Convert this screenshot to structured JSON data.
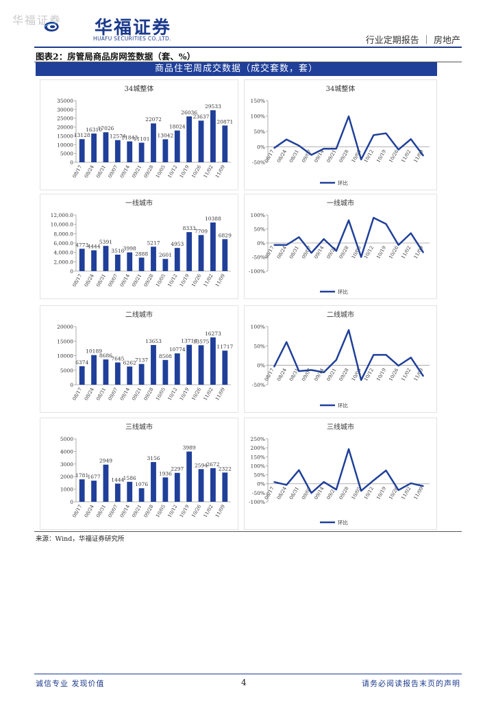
{
  "watermark": "华福证券",
  "brand": {
    "name_cn": "华福证券",
    "name_en": "HUAFU SECURITIES CO.,LTD.",
    "color": "#1b3a8c"
  },
  "header": {
    "report_type": "行业定期报告 ｜ 房地产"
  },
  "figure": {
    "title": "图表2：房管局商品房网签数据（套、%）",
    "banner": "商品住宅周成交数据（成交套数，套）"
  },
  "colors": {
    "bar": "#1f3f99",
    "line": "#1f3f99",
    "banner": "#1f3f99"
  },
  "chart_data": [
    {
      "type": "bar",
      "title": "34城整体",
      "categories": [
        "08/17",
        "08/24",
        "08/31",
        "09/07",
        "09/14",
        "09/21",
        "09/28",
        "10/05",
        "10/12",
        "10/19",
        "10/26",
        "11/02",
        "11/09"
      ],
      "values": [
        13128,
        16310,
        17026,
        12574,
        11843,
        11101,
        22072,
        13042,
        18024,
        26036,
        23637,
        29533,
        20871
      ],
      "labels": [
        "13128",
        "16310",
        "17026",
        "12574",
        "11843",
        "11101",
        "22072",
        "13042",
        "18024",
        "26036",
        "23637",
        "29533",
        "20871"
      ],
      "ylim": [
        0,
        35000
      ],
      "yticks": [
        "0",
        "5000",
        "10000",
        "15000",
        "20000",
        "25000",
        "30000",
        "35000"
      ]
    },
    {
      "type": "line",
      "title": "34城整体",
      "legend": "环比",
      "categories": [
        "08/17",
        "08/24",
        "08/31",
        "09/07",
        "09/14",
        "09/21",
        "09/28",
        "10/05",
        "10/12",
        "10/19",
        "10/26",
        "11/02",
        "11/09"
      ],
      "values": [
        -4,
        24,
        4,
        -26,
        -6,
        -6,
        99,
        -41,
        38,
        44,
        -9,
        25,
        -29
      ],
      "ylim": [
        -50,
        150
      ],
      "yticks": [
        "-50%",
        "0%",
        "50%",
        "100%",
        "150%"
      ]
    },
    {
      "type": "bar",
      "title": "一线城市",
      "categories": [
        "08/17",
        "08/24",
        "08/31",
        "09/07",
        "09/14",
        "09/21",
        "09/28",
        "10/05",
        "10/12",
        "10/19",
        "10/26",
        "11/02",
        "11/09"
      ],
      "values": [
        4773,
        4444,
        5391,
        3516,
        3998,
        2888,
        5217,
        2601,
        4953,
        8333,
        7709,
        10388,
        6829
      ],
      "labels": [
        "4773",
        "4444",
        "5391",
        "3516",
        "3998",
        "2888",
        "5217",
        "2601",
        "4953",
        "8333",
        "7709",
        "10388",
        "6829"
      ],
      "ylim": [
        0,
        12000
      ],
      "yticks": [
        "0",
        "2,000.0",
        "4,000.0",
        "6,000.0",
        "8,000.0",
        "10,000.0",
        "12,000.0"
      ]
    },
    {
      "type": "line",
      "title": "一线城市",
      "legend": "环比",
      "categories": [
        "08/17",
        "08/24",
        "08/31",
        "09/07",
        "09/14",
        "09/21",
        "09/28",
        "10/05",
        "10/12",
        "10/19",
        "10/26",
        "11/02",
        "11/09"
      ],
      "values": [
        -7,
        -7,
        21,
        -35,
        14,
        -28,
        81,
        -50,
        90,
        68,
        -7,
        35,
        -34
      ],
      "ylim": [
        -100,
        100
      ],
      "yticks": [
        "-100%",
        "-50%",
        "0%",
        "50%",
        "100%"
      ]
    },
    {
      "type": "bar",
      "title": "二线城市",
      "categories": [
        "08/17",
        "08/24",
        "08/31",
        "09/07",
        "09/14",
        "09/21",
        "09/28",
        "10/05",
        "10/12",
        "10/19",
        "10/26",
        "11/02",
        "11/09"
      ],
      "values": [
        6374,
        10189,
        8686,
        7645,
        6262,
        7137,
        13653,
        8508,
        10774,
        13714,
        13575,
        16273,
        11717
      ],
      "labels": [
        "6374",
        "10189",
        "8686",
        "7645",
        "6262",
        "7137",
        "13653",
        "8508",
        "10774",
        "13714",
        "13575",
        "16273",
        "11717"
      ],
      "ylim": [
        0,
        20000
      ],
      "yticks": [
        "0",
        "5000",
        "10000",
        "15000",
        "20000"
      ]
    },
    {
      "type": "line",
      "title": "二线城市",
      "legend": "环比",
      "categories": [
        "08/17",
        "08/24",
        "08/31",
        "09/07",
        "09/14",
        "09/21",
        "09/28",
        "10/05",
        "10/12",
        "10/19",
        "10/26",
        "11/02",
        "11/09"
      ],
      "values": [
        -4,
        60,
        -15,
        -12,
        -18,
        14,
        91,
        -38,
        27,
        27,
        -1,
        20,
        -28
      ],
      "ylim": [
        -50,
        100
      ],
      "yticks": [
        "-50%",
        "0%",
        "50%",
        "100%"
      ]
    },
    {
      "type": "bar",
      "title": "三线城市",
      "categories": [
        "08/17",
        "08/24",
        "08/31",
        "09/07",
        "09/14",
        "09/21",
        "09/28",
        "10/05",
        "10/12",
        "10/19",
        "10/26",
        "11/02",
        "11/09"
      ],
      "values": [
        1781,
        1677,
        2949,
        1444,
        1586,
        1076,
        3156,
        1936,
        2297,
        3989,
        2594,
        2672,
        2322
      ],
      "labels": [
        "1781",
        "1677",
        "2949",
        "1444",
        "1586",
        "1076",
        "3156",
        "1936",
        "2297",
        "3989",
        "2594",
        "2672",
        "2322"
      ],
      "ylim": [
        0,
        5000
      ],
      "yticks": [
        "0",
        "1000",
        "2000",
        "3000",
        "4000",
        "5000"
      ]
    },
    {
      "type": "line",
      "title": "三线城市",
      "legend": "环比",
      "categories": [
        "08/17",
        "08/24",
        "08/31",
        "09/07",
        "09/14",
        "09/21",
        "09/28",
        "10/05",
        "10/12",
        "10/19",
        "10/26",
        "11/02",
        "11/09"
      ],
      "values": [
        10,
        -6,
        76,
        -51,
        10,
        -32,
        193,
        -39,
        19,
        74,
        -35,
        3,
        -13
      ],
      "ylim": [
        -100,
        250
      ],
      "yticks": [
        "-100%",
        "-50%",
        "0%",
        "50%",
        "100%",
        "150%",
        "200%",
        "250%"
      ]
    }
  ],
  "source": "来源：Wind，华福证券研究所",
  "footer": {
    "left": "诚信专业  发现价值",
    "page": "4",
    "right": "请务必阅读报告末页的声明"
  }
}
